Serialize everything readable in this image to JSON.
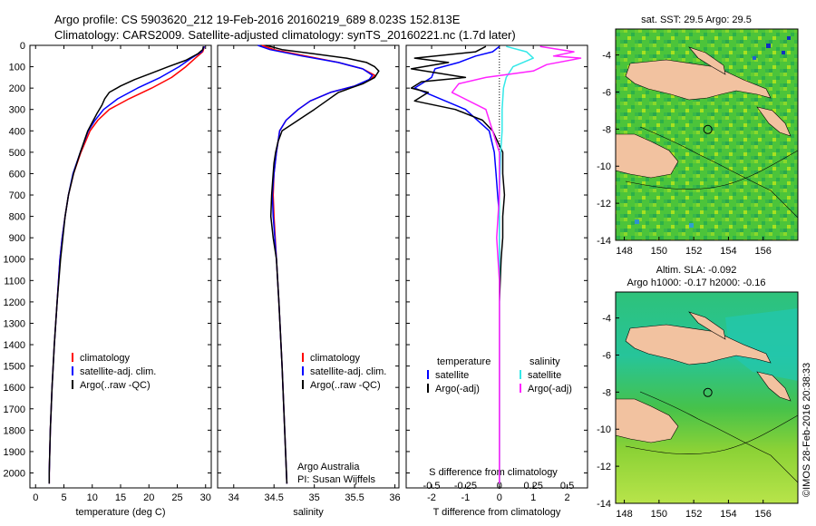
{
  "header": {
    "line1": "Argo profile: CS 5903620_212 19-Feb-2016 20160219_689 8.023S 152.813E",
    "line2": "Climatology: CARS2009. Satellite-adjusted climatology: synTS_20160221.nc (1.7d later)"
  },
  "footer": {
    "credit": "Argo Australia",
    "pi": "PI: Susan Wijffels",
    "timestamp": "©IMOS 28-Feb-2016 20:38:33"
  },
  "colors": {
    "climatology": "#ff0000",
    "satellite": "#0000ff",
    "argo": "#000000",
    "sal_satellite": "#33e8e8",
    "sal_argo": "#ff22ff",
    "land": "#f2c2a0"
  },
  "chart_data": [
    {
      "id": "temperature",
      "type": "line",
      "xlabel": "temperature (deg C)",
      "ylabel": "",
      "xlim": [
        -1,
        31
      ],
      "ylim": [
        2070,
        0
      ],
      "xticks": [
        "0",
        "5",
        "10",
        "15",
        "20",
        "25",
        "30"
      ],
      "xtick_values": [
        0,
        5,
        10,
        15,
        20,
        25,
        30
      ],
      "yticks": [
        "0",
        "100",
        "200",
        "300",
        "400",
        "500",
        "600",
        "700",
        "800",
        "900",
        "1000",
        "1100",
        "1200",
        "1300",
        "1400",
        "1500",
        "1600",
        "1700",
        "1800",
        "1900",
        "2000"
      ],
      "ytick_values": [
        0,
        100,
        200,
        300,
        400,
        500,
        600,
        700,
        800,
        900,
        1000,
        1100,
        1200,
        1300,
        1400,
        1500,
        1600,
        1700,
        1800,
        1900,
        2000
      ],
      "legend": [
        "climatology",
        "satellite-adj. clim.",
        "Argo(..raw -QC)"
      ],
      "series": [
        {
          "name": "climatology",
          "color": "#ff0000",
          "depth": [
            5,
            30,
            60,
            100,
            150,
            200,
            250,
            300,
            350,
            400,
            500,
            600,
            700,
            800,
            900,
            1000,
            1200,
            1400,
            1600,
            1800,
            2000,
            2050
          ],
          "values": [
            29.8,
            29.5,
            28.2,
            26.5,
            24.0,
            20.5,
            16.5,
            13.0,
            11.0,
            9.6,
            8.0,
            6.7,
            5.8,
            5.2,
            4.7,
            4.3,
            3.8,
            3.3,
            2.9,
            2.6,
            2.4,
            2.4
          ]
        },
        {
          "name": "satellite-adj. clim.",
          "color": "#0000ff",
          "depth": [
            5,
            30,
            60,
            100,
            150,
            200,
            250,
            300,
            350,
            400,
            500,
            600,
            700,
            800,
            900,
            1000,
            1200,
            1400,
            1600,
            1800,
            2000,
            2050
          ],
          "values": [
            29.8,
            29.3,
            27.5,
            25.3,
            22.0,
            18.0,
            14.5,
            12.0,
            10.5,
            9.3,
            7.9,
            6.6,
            5.8,
            5.2,
            4.7,
            4.3,
            3.8,
            3.3,
            2.9,
            2.6,
            2.4,
            2.4
          ]
        },
        {
          "name": "Argo(..raw -QC)",
          "color": "#000000",
          "depth": [
            5,
            20,
            40,
            70,
            100,
            130,
            160,
            190,
            220,
            250,
            280,
            320,
            360,
            400,
            500,
            600,
            700,
            800,
            900,
            1000,
            1200,
            1400,
            1600,
            1800,
            2000,
            2050
          ],
          "values": [
            29.6,
            29.5,
            28.6,
            26.5,
            23.4,
            20.5,
            17.5,
            15.0,
            13.0,
            12.2,
            11.7,
            10.8,
            10.0,
            9.2,
            7.9,
            6.7,
            5.8,
            5.2,
            4.8,
            4.4,
            3.8,
            3.3,
            2.9,
            2.6,
            2.4,
            2.4
          ]
        }
      ]
    },
    {
      "id": "salinity",
      "type": "line",
      "xlabel": "salinity",
      "xlim": [
        33.8,
        36.05
      ],
      "ylim": [
        2070,
        0
      ],
      "xticks": [
        "34",
        "34.5",
        "35",
        "35.5",
        "36"
      ],
      "xtick_values": [
        34,
        34.5,
        35,
        35.5,
        36
      ],
      "legend": [
        "climatology",
        "satellite-adj. clim.",
        "Argo(..raw -QC)"
      ],
      "series": [
        {
          "name": "climatology",
          "color": "#ff0000",
          "depth": [
            0,
            20,
            50,
            80,
            110,
            140,
            160,
            190,
            220,
            260,
            300,
            350,
            400,
            450,
            500,
            600,
            700,
            800,
            1000,
            1200,
            1500,
            2050
          ],
          "values": [
            34.35,
            34.5,
            34.9,
            35.3,
            35.6,
            35.75,
            35.7,
            35.5,
            35.2,
            34.95,
            34.8,
            34.65,
            34.57,
            34.55,
            34.53,
            34.5,
            34.49,
            34.5,
            34.53,
            34.56,
            34.6,
            34.66
          ]
        },
        {
          "name": "satellite-adj. clim.",
          "color": "#0000ff",
          "depth": [
            0,
            20,
            50,
            80,
            110,
            140,
            160,
            190,
            220,
            260,
            300,
            350,
            400,
            450,
            500,
            600,
            700,
            800,
            1000,
            1200,
            1500,
            2050
          ],
          "values": [
            34.3,
            34.45,
            34.85,
            35.3,
            35.6,
            35.72,
            35.68,
            35.5,
            35.2,
            34.95,
            34.8,
            34.65,
            34.57,
            34.55,
            34.53,
            34.5,
            34.48,
            34.49,
            34.53,
            34.56,
            34.6,
            34.66
          ]
        },
        {
          "name": "Argo(..raw -QC)",
          "color": "#000000",
          "depth": [
            0,
            20,
            40,
            60,
            80,
            100,
            120,
            150,
            180,
            200,
            220,
            260,
            300,
            350,
            400,
            450,
            500,
            550,
            600,
            700,
            800,
            900,
            1000,
            1200,
            1500,
            2050
          ],
          "values": [
            34.4,
            34.6,
            35.0,
            35.4,
            35.65,
            35.75,
            35.8,
            35.75,
            35.6,
            35.45,
            35.3,
            35.15,
            35.0,
            34.8,
            34.6,
            34.55,
            34.52,
            34.5,
            34.49,
            34.47,
            34.46,
            34.49,
            34.53,
            34.56,
            34.6,
            34.66
          ]
        }
      ]
    },
    {
      "id": "difference",
      "type": "line",
      "xlabel": "T difference from climatology",
      "top_label": "S difference from climatology",
      "xlim": [
        -2.75,
        2.6
      ],
      "ylim": [
        2070,
        0
      ],
      "xticks": [
        "-2",
        "-1",
        "0",
        "1",
        "2"
      ],
      "xtick_values": [
        -2,
        -1,
        0,
        1,
        2
      ],
      "top_ticks": [
        "-0.5",
        "-0.25",
        "0",
        "0.25",
        "0.5"
      ],
      "top_tick_values": [
        -0.5,
        -0.25,
        0,
        0.25,
        0.5
      ],
      "legend_temperature": {
        "title": "temperature",
        "items": [
          "satellite",
          "Argo(-adj)"
        ]
      },
      "legend_salinity": {
        "title": "salinity",
        "items": [
          "satellite",
          "Argo(-adj)"
        ]
      },
      "series": [
        {
          "name": "temperature satellite",
          "color": "#0000ff",
          "depth": [
            5,
            30,
            50,
            80,
            110,
            150,
            200,
            300,
            400,
            500,
            600,
            700,
            800,
            900,
            1000,
            1200,
            1500,
            2050
          ],
          "values": [
            0,
            -0.2,
            -0.7,
            -1.2,
            -1.9,
            -2.0,
            -2.5,
            -1.0,
            -0.3,
            -0.15,
            -0.1,
            -0.05,
            0,
            0,
            0,
            0,
            0,
            0
          ]
        },
        {
          "name": "temperature Argo(-adj)",
          "color": "#000000",
          "depth": [
            5,
            30,
            60,
            80,
            110,
            150,
            170,
            200,
            220,
            260,
            300,
            350,
            400,
            500,
            600,
            700,
            800,
            900,
            1000,
            1200,
            1500,
            2050
          ],
          "values": [
            -0.4,
            -0.7,
            -2.5,
            -1.5,
            -2.6,
            -1.0,
            -2.3,
            -2.6,
            -2.1,
            -2.5,
            -1.3,
            -0.5,
            -0.2,
            0.1,
            0.1,
            0.15,
            0.1,
            0.1,
            0.05,
            0,
            0,
            0
          ]
        },
        {
          "name": "salinity satellite",
          "color": "#33e8e8",
          "depth": [
            5,
            30,
            60,
            100,
            150,
            200,
            300,
            400,
            500,
            700,
            900,
            1200,
            1500,
            2050
          ],
          "values": [
            0.05,
            0.2,
            0.25,
            0.1,
            0.05,
            0.03,
            0.02,
            0.02,
            0.01,
            0,
            0,
            0,
            0,
            0
          ]
        },
        {
          "name": "salinity Argo(-adj)",
          "color": "#ff22ff",
          "depth": [
            5,
            30,
            50,
            60,
            90,
            120,
            150,
            180,
            220,
            300,
            400,
            500,
            700,
            900,
            1100,
            1300,
            1500,
            2050
          ],
          "values": [
            0.3,
            0.55,
            0.4,
            0.6,
            0.35,
            0.25,
            -0.1,
            -0.3,
            -0.35,
            -0.1,
            -0.05,
            0,
            0,
            -0.02,
            0,
            0,
            0,
            0
          ]
        }
      ]
    }
  ],
  "maps": [
    {
      "id": "sst-map",
      "title": "sat. SST: 29.5 Argo: 29.5",
      "xticks": [
        "148",
        "150",
        "152",
        "154",
        "156"
      ],
      "xtick_values": [
        148,
        150,
        152,
        154,
        156
      ],
      "yticks": [
        "-4",
        "-6",
        "-8",
        "-10",
        "-12",
        "-14"
      ],
      "ytick_values": [
        -4,
        -6,
        -8,
        -10,
        -12,
        -14
      ],
      "marker": {
        "lon": 152.813,
        "lat": -8.023
      }
    },
    {
      "id": "sla-map",
      "title_line1": "Altim. SLA: -0.092",
      "title_line2": "Argo h1000: -0.17 h2000: -0.16",
      "xticks": [
        "148",
        "150",
        "152",
        "154",
        "156"
      ],
      "xtick_values": [
        148,
        150,
        152,
        154,
        156
      ],
      "yticks": [
        "-4",
        "-6",
        "-8",
        "-10",
        "-12",
        "-14"
      ],
      "ytick_values": [
        -4,
        -6,
        -8,
        -10,
        -12,
        -14
      ],
      "marker": {
        "lon": 152.813,
        "lat": -8.023
      }
    }
  ]
}
